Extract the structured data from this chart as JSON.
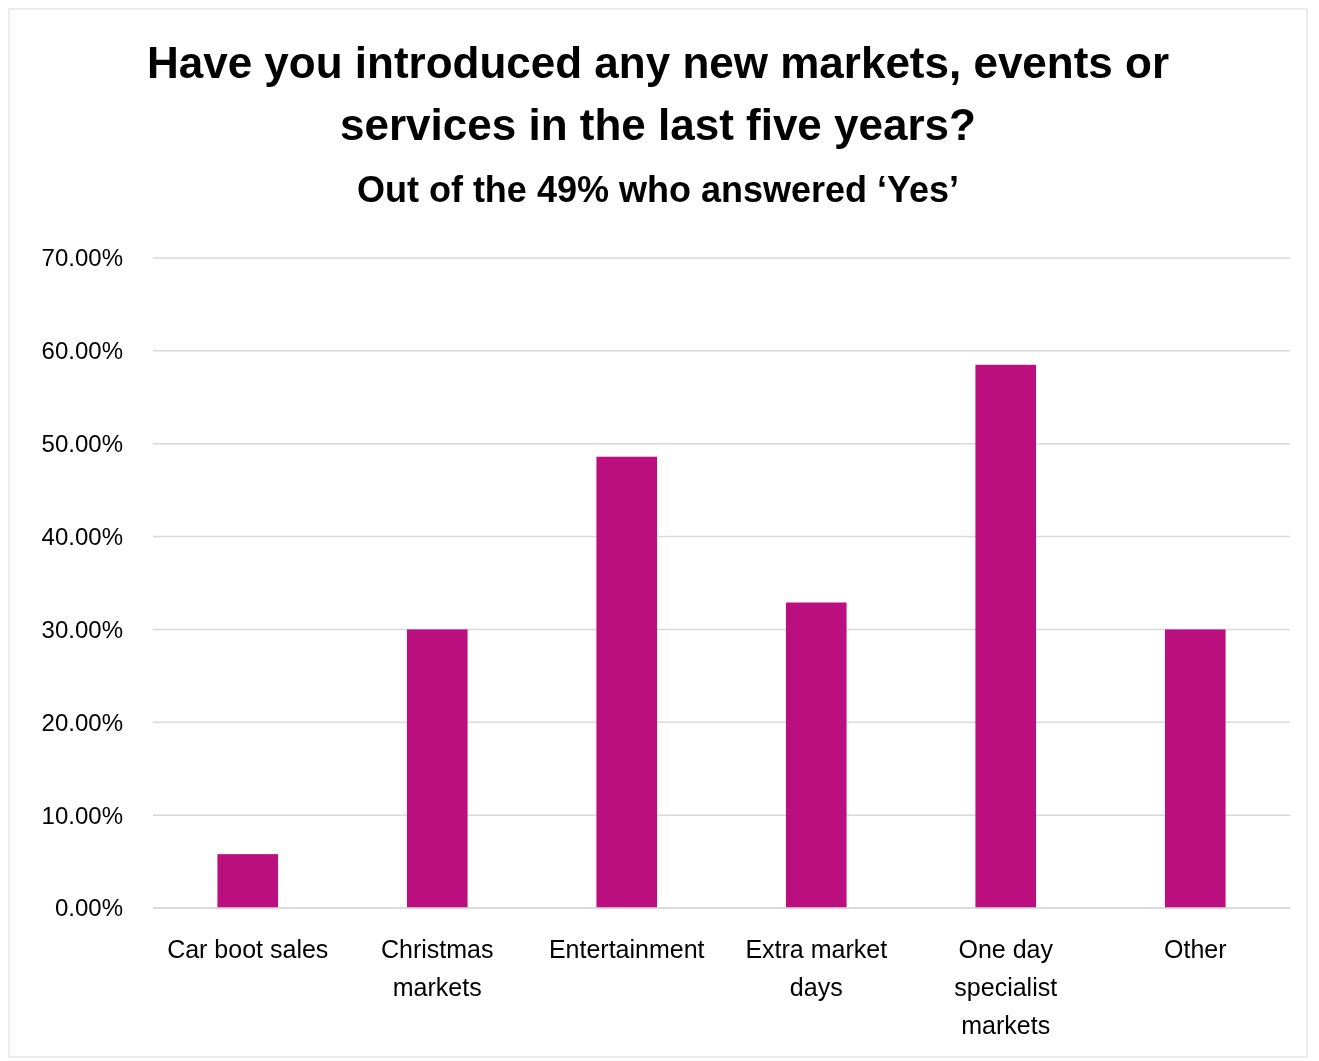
{
  "chart_data": {
    "type": "bar",
    "title": "Have you introduced any new markets, events or services in the last five years?",
    "subtitle": "Out of the 49% who answered ‘Yes’",
    "categories": [
      "Car boot sales",
      "Christmas markets",
      "Entertainment",
      "Extra market days",
      "One day specialist markets",
      "Other"
    ],
    "values": [
      5.8,
      30.0,
      48.6,
      32.9,
      58.5,
      30.0
    ],
    "color": "#bb0f80",
    "ylim": [
      0,
      70
    ],
    "yticks": [
      {
        "value": 0,
        "label": "0.00%"
      },
      {
        "value": 10,
        "label": "10.00%"
      },
      {
        "value": 20,
        "label": "20.00%"
      },
      {
        "value": 30,
        "label": "30.00%"
      },
      {
        "value": 40,
        "label": "40.00%"
      },
      {
        "value": 50,
        "label": "50.00%"
      },
      {
        "value": 60,
        "label": "60.00%"
      },
      {
        "value": 70,
        "label": "70.00%"
      }
    ],
    "grid": "y"
  }
}
